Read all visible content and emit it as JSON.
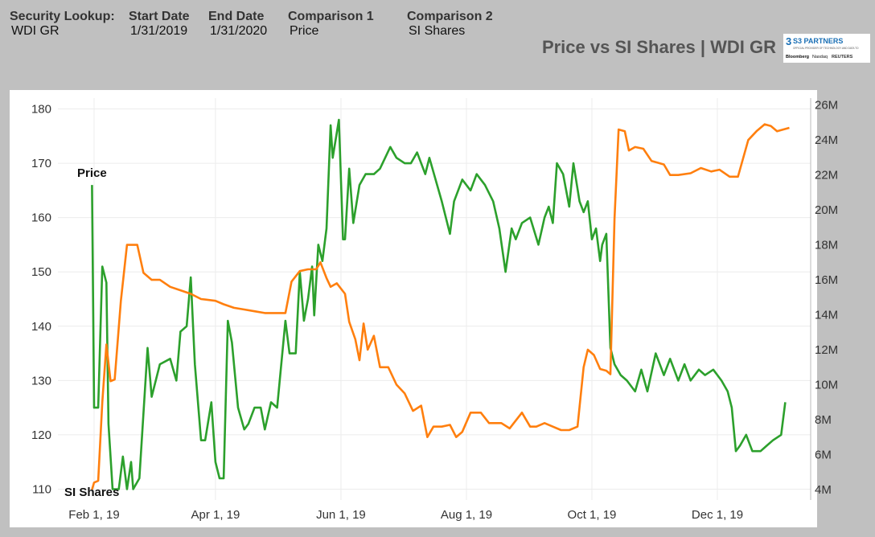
{
  "header": {
    "fields": [
      {
        "label": "Security Lookup:",
        "value": "WDI GR"
      },
      {
        "label": "Start Date",
        "value": "1/31/2019"
      },
      {
        "label": "End Date",
        "value": "1/31/2020"
      },
      {
        "label": "Comparison 1",
        "value": "Price"
      },
      {
        "label": "Comparison 2",
        "value": "SI Shares"
      }
    ],
    "title": "Price vs SI Shares | WDI GR",
    "logo": {
      "brand": "S3 PARTNERS",
      "tagline": "OFFICIAL PROVIDER OF TECHNOLOGY AND DATA TO",
      "partners": [
        "Bloomberg",
        "Nasdaq",
        "REUTERS"
      ]
    }
  },
  "chart_data": {
    "type": "line",
    "title": "Price vs SI Shares | WDI GR",
    "x_ticks": [
      "Feb 1, 19",
      "Apr 1, 19",
      "Jun 1, 19",
      "Aug 1, 19",
      "Oct 1, 19",
      "Dec 1, 19"
    ],
    "y_left": {
      "ticks": [
        110,
        120,
        130,
        140,
        150,
        160,
        170,
        180
      ],
      "range": [
        108,
        182
      ]
    },
    "y_right": {
      "ticks": [
        "4M",
        "6M",
        "8M",
        "10M",
        "12M",
        "14M",
        "16M",
        "18M",
        "20M",
        "22M",
        "24M",
        "26M"
      ],
      "range_millions": [
        3.4,
        26.4
      ]
    },
    "grid": true,
    "annotations": [
      "Price",
      "SI Shares"
    ],
    "series": [
      {
        "name": "Price",
        "axis": "left",
        "color": "#2ca02c",
        "points": [
          [
            "2019-01-31",
            166
          ],
          [
            "2019-02-01",
            125
          ],
          [
            "2019-02-03",
            125
          ],
          [
            "2019-02-05",
            151
          ],
          [
            "2019-02-07",
            148
          ],
          [
            "2019-02-08",
            122
          ],
          [
            "2019-02-10",
            110
          ],
          [
            "2019-02-13",
            110
          ],
          [
            "2019-02-15",
            116
          ],
          [
            "2019-02-17",
            110
          ],
          [
            "2019-02-19",
            115
          ],
          [
            "2019-02-20",
            110
          ],
          [
            "2019-02-23",
            112
          ],
          [
            "2019-02-27",
            136
          ],
          [
            "2019-03-01",
            127
          ],
          [
            "2019-03-05",
            133
          ],
          [
            "2019-03-10",
            134
          ],
          [
            "2019-03-13",
            130
          ],
          [
            "2019-03-15",
            139
          ],
          [
            "2019-03-18",
            140
          ],
          [
            "2019-03-20",
            149
          ],
          [
            "2019-03-22",
            133
          ],
          [
            "2019-03-25",
            119
          ],
          [
            "2019-03-27",
            119
          ],
          [
            "2019-03-30",
            126
          ],
          [
            "2019-04-01",
            115
          ],
          [
            "2019-04-03",
            112
          ],
          [
            "2019-04-05",
            112
          ],
          [
            "2019-04-07",
            141
          ],
          [
            "2019-04-09",
            137
          ],
          [
            "2019-04-12",
            125
          ],
          [
            "2019-04-15",
            121
          ],
          [
            "2019-04-17",
            122
          ],
          [
            "2019-04-20",
            125
          ],
          [
            "2019-04-23",
            125
          ],
          [
            "2019-04-25",
            121
          ],
          [
            "2019-04-28",
            126
          ],
          [
            "2019-05-01",
            125
          ],
          [
            "2019-05-05",
            141
          ],
          [
            "2019-05-07",
            135
          ],
          [
            "2019-05-10",
            135
          ],
          [
            "2019-05-12",
            150
          ],
          [
            "2019-05-14",
            141
          ],
          [
            "2019-05-16",
            145
          ],
          [
            "2019-05-18",
            151
          ],
          [
            "2019-05-19",
            142
          ],
          [
            "2019-05-21",
            155
          ],
          [
            "2019-05-23",
            152
          ],
          [
            "2019-05-25",
            158
          ],
          [
            "2019-05-27",
            177
          ],
          [
            "2019-05-28",
            171
          ],
          [
            "2019-05-31",
            178
          ],
          [
            "2019-06-02",
            156
          ],
          [
            "2019-06-03",
            156
          ],
          [
            "2019-06-05",
            169
          ],
          [
            "2019-06-07",
            159
          ],
          [
            "2019-06-10",
            166
          ],
          [
            "2019-06-13",
            168
          ],
          [
            "2019-06-17",
            168
          ],
          [
            "2019-06-20",
            169
          ],
          [
            "2019-06-25",
            173
          ],
          [
            "2019-06-28",
            171
          ],
          [
            "2019-07-02",
            170
          ],
          [
            "2019-07-05",
            170
          ],
          [
            "2019-07-08",
            172
          ],
          [
            "2019-07-12",
            168
          ],
          [
            "2019-07-14",
            171
          ],
          [
            "2019-07-20",
            163
          ],
          [
            "2019-07-24",
            157
          ],
          [
            "2019-07-26",
            163
          ],
          [
            "2019-07-30",
            167
          ],
          [
            "2019-08-03",
            165
          ],
          [
            "2019-08-06",
            168
          ],
          [
            "2019-08-10",
            166
          ],
          [
            "2019-08-14",
            163
          ],
          [
            "2019-08-17",
            158
          ],
          [
            "2019-08-20",
            150
          ],
          [
            "2019-08-23",
            158
          ],
          [
            "2019-08-25",
            156
          ],
          [
            "2019-08-28",
            159
          ],
          [
            "2019-09-01",
            160
          ],
          [
            "2019-09-05",
            155
          ],
          [
            "2019-09-08",
            160
          ],
          [
            "2019-09-10",
            162
          ],
          [
            "2019-09-12",
            159
          ],
          [
            "2019-09-14",
            170
          ],
          [
            "2019-09-17",
            168
          ],
          [
            "2019-09-20",
            162
          ],
          [
            "2019-09-22",
            170
          ],
          [
            "2019-09-25",
            163
          ],
          [
            "2019-09-27",
            161
          ],
          [
            "2019-09-29",
            163
          ],
          [
            "2019-10-01",
            156
          ],
          [
            "2019-10-03",
            158
          ],
          [
            "2019-10-05",
            152
          ],
          [
            "2019-10-06",
            155
          ],
          [
            "2019-10-08",
            157
          ],
          [
            "2019-10-10",
            136
          ],
          [
            "2019-10-12",
            133
          ],
          [
            "2019-10-15",
            131
          ],
          [
            "2019-10-18",
            130
          ],
          [
            "2019-10-22",
            128
          ],
          [
            "2019-10-25",
            132
          ],
          [
            "2019-10-28",
            128
          ],
          [
            "2019-11-01",
            135
          ],
          [
            "2019-11-05",
            131
          ],
          [
            "2019-11-08",
            134
          ],
          [
            "2019-11-12",
            130
          ],
          [
            "2019-11-15",
            133
          ],
          [
            "2019-11-18",
            130
          ],
          [
            "2019-11-22",
            132
          ],
          [
            "2019-11-25",
            131
          ],
          [
            "2019-11-29",
            132
          ],
          [
            "2019-12-03",
            130
          ],
          [
            "2019-12-06",
            128
          ],
          [
            "2019-12-08",
            125
          ],
          [
            "2019-12-10",
            117
          ],
          [
            "2019-12-12",
            118
          ],
          [
            "2019-12-15",
            120
          ],
          [
            "2019-12-18",
            117
          ],
          [
            "2019-12-22",
            117
          ],
          [
            "2019-12-25",
            118
          ],
          [
            "2019-12-28",
            119
          ],
          [
            "2020-01-01",
            120
          ],
          [
            "2020-01-03",
            126
          ]
        ]
      },
      {
        "name": "SI Shares",
        "axis": "right",
        "color": "#ff7f0e",
        "points_millions": [
          [
            "2019-01-31",
            4.0
          ],
          [
            "2019-02-01",
            4.4
          ],
          [
            "2019-02-03",
            4.5
          ],
          [
            "2019-02-05",
            9.0
          ],
          [
            "2019-02-07",
            12.3
          ],
          [
            "2019-02-09",
            10.2
          ],
          [
            "2019-02-11",
            10.3
          ],
          [
            "2019-02-14",
            14.8
          ],
          [
            "2019-02-17",
            18.0
          ],
          [
            "2019-02-22",
            18.0
          ],
          [
            "2019-02-25",
            16.4
          ],
          [
            "2019-03-01",
            16.0
          ],
          [
            "2019-03-05",
            16.0
          ],
          [
            "2019-03-10",
            15.6
          ],
          [
            "2019-03-15",
            15.4
          ],
          [
            "2019-03-20",
            15.2
          ],
          [
            "2019-03-25",
            14.9
          ],
          [
            "2019-04-01",
            14.8
          ],
          [
            "2019-04-05",
            14.6
          ],
          [
            "2019-04-10",
            14.4
          ],
          [
            "2019-04-15",
            14.3
          ],
          [
            "2019-04-20",
            14.2
          ],
          [
            "2019-04-25",
            14.1
          ],
          [
            "2019-05-01",
            14.1
          ],
          [
            "2019-05-05",
            14.1
          ],
          [
            "2019-05-08",
            15.9
          ],
          [
            "2019-05-12",
            16.5
          ],
          [
            "2019-05-16",
            16.6
          ],
          [
            "2019-05-20",
            16.6
          ],
          [
            "2019-05-22",
            17.0
          ],
          [
            "2019-05-25",
            16.1
          ],
          [
            "2019-05-27",
            15.6
          ],
          [
            "2019-05-30",
            15.8
          ],
          [
            "2019-06-03",
            15.2
          ],
          [
            "2019-06-05",
            13.6
          ],
          [
            "2019-06-08",
            12.6
          ],
          [
            "2019-06-10",
            11.4
          ],
          [
            "2019-06-12",
            13.5
          ],
          [
            "2019-06-14",
            12.0
          ],
          [
            "2019-06-17",
            12.8
          ],
          [
            "2019-06-20",
            11.0
          ],
          [
            "2019-06-24",
            11.0
          ],
          [
            "2019-06-28",
            10.0
          ],
          [
            "2019-07-02",
            9.5
          ],
          [
            "2019-07-06",
            8.5
          ],
          [
            "2019-07-10",
            8.8
          ],
          [
            "2019-07-13",
            7.0
          ],
          [
            "2019-07-16",
            7.6
          ],
          [
            "2019-07-20",
            7.6
          ],
          [
            "2019-07-24",
            7.7
          ],
          [
            "2019-07-27",
            7.0
          ],
          [
            "2019-07-30",
            7.3
          ],
          [
            "2019-08-03",
            8.4
          ],
          [
            "2019-08-08",
            8.4
          ],
          [
            "2019-08-12",
            7.8
          ],
          [
            "2019-08-18",
            7.8
          ],
          [
            "2019-08-22",
            7.5
          ],
          [
            "2019-08-28",
            8.4
          ],
          [
            "2019-09-01",
            7.6
          ],
          [
            "2019-09-04",
            7.6
          ],
          [
            "2019-09-08",
            7.8
          ],
          [
            "2019-09-12",
            7.6
          ],
          [
            "2019-09-16",
            7.4
          ],
          [
            "2019-09-20",
            7.4
          ],
          [
            "2019-09-24",
            7.6
          ],
          [
            "2019-09-27",
            11.0
          ],
          [
            "2019-09-29",
            12.0
          ],
          [
            "2019-10-02",
            11.7
          ],
          [
            "2019-10-05",
            10.9
          ],
          [
            "2019-10-08",
            10.8
          ],
          [
            "2019-10-10",
            10.6
          ],
          [
            "2019-10-12",
            19.5
          ],
          [
            "2019-10-14",
            24.6
          ],
          [
            "2019-10-17",
            24.5
          ],
          [
            "2019-10-19",
            23.4
          ],
          [
            "2019-10-22",
            23.6
          ],
          [
            "2019-10-26",
            23.5
          ],
          [
            "2019-10-30",
            22.8
          ],
          [
            "2019-11-02",
            22.7
          ],
          [
            "2019-11-05",
            22.6
          ],
          [
            "2019-11-08",
            22.0
          ],
          [
            "2019-11-12",
            22.0
          ],
          [
            "2019-11-18",
            22.1
          ],
          [
            "2019-11-23",
            22.4
          ],
          [
            "2019-11-28",
            22.2
          ],
          [
            "2019-12-02",
            22.3
          ],
          [
            "2019-12-07",
            21.9
          ],
          [
            "2019-12-11",
            21.9
          ],
          [
            "2019-12-16",
            24.0
          ],
          [
            "2019-12-20",
            24.5
          ],
          [
            "2019-12-24",
            24.9
          ],
          [
            "2019-12-27",
            24.8
          ],
          [
            "2019-12-30",
            24.5
          ],
          [
            "2020-01-02",
            24.6
          ],
          [
            "2020-01-05",
            24.7
          ]
        ]
      }
    ]
  }
}
